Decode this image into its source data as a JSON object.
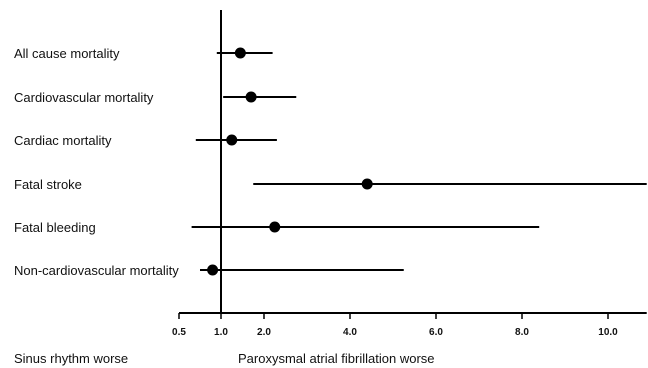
{
  "chart_data": {
    "type": "forest",
    "title": "",
    "xlabel_left": "Sinus rhythm worse",
    "xlabel_right": "Paroxysmal atrial fibrillation worse",
    "reference_line": 1.0,
    "xlim": [
      0.5,
      10.9
    ],
    "x_ticks": [
      {
        "value": 0.5,
        "label": "0.5"
      },
      {
        "value": 1.0,
        "label": "1.0"
      },
      {
        "value": 2.0,
        "label": "2.0"
      },
      {
        "value": 4.0,
        "label": "4.0"
      },
      {
        "value": 6.0,
        "label": "6.0"
      },
      {
        "value": 8.0,
        "label": "8.0"
      },
      {
        "value": 10.0,
        "label": "10.0"
      }
    ],
    "rows": [
      {
        "label": "All cause mortality",
        "estimate": 1.45,
        "lower": 0.95,
        "upper": 2.2
      },
      {
        "label": "Cardiovascular mortality",
        "estimate": 1.7,
        "lower": 1.05,
        "upper": 2.75
      },
      {
        "label": "Cardiac mortality",
        "estimate": 1.25,
        "lower": 0.7,
        "upper": 2.3
      },
      {
        "label": "Fatal stroke",
        "estimate": 4.4,
        "lower": 1.75,
        "upper": 10.9
      },
      {
        "label": "Fatal bleeding",
        "estimate": 2.25,
        "lower": 0.65,
        "upper": 8.4
      },
      {
        "label": "Non-cardiovascular mortality",
        "estimate": 0.9,
        "lower": 0.75,
        "upper": 5.25
      }
    ]
  }
}
